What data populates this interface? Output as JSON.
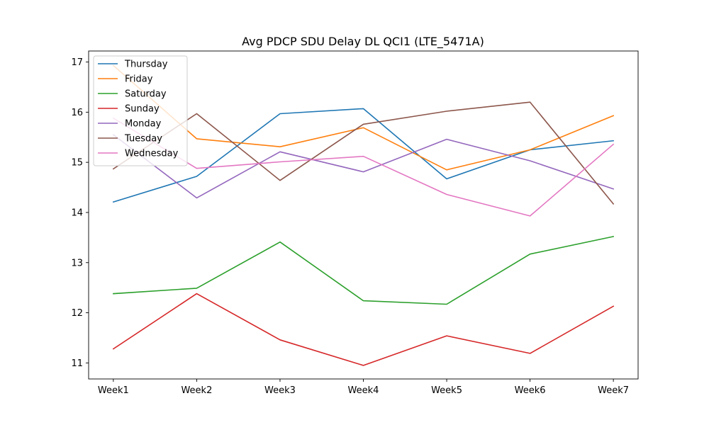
{
  "chart_data": {
    "type": "line",
    "title": "Avg PDCP SDU Delay DL QCI1 (LTE_5471A)",
    "xlabel": "",
    "ylabel": "",
    "categories": [
      "Week1",
      "Week2",
      "Week3",
      "Week4",
      "Week5",
      "Week6",
      "Week7"
    ],
    "ylim": [
      10.68,
      17.22
    ],
    "yticks": [
      11,
      12,
      13,
      14,
      15,
      16,
      17
    ],
    "grid": false,
    "legend_position": "top-left",
    "series": [
      {
        "name": "Thursday",
        "color": "#1f77b4",
        "values": [
          14.21,
          14.72,
          15.97,
          16.07,
          14.67,
          15.25,
          15.43
        ]
      },
      {
        "name": "Friday",
        "color": "#ff7f0e",
        "values": [
          16.93,
          15.47,
          15.31,
          15.69,
          14.85,
          15.25,
          15.93
        ]
      },
      {
        "name": "Saturday",
        "color": "#2ca02c",
        "values": [
          12.38,
          12.49,
          13.41,
          12.24,
          12.17,
          13.17,
          13.52
        ]
      },
      {
        "name": "Sunday",
        "color": "#d62728",
        "values": [
          11.28,
          12.38,
          11.46,
          10.95,
          11.54,
          11.19,
          12.13
        ]
      },
      {
        "name": "Monday",
        "color": "#9467bd",
        "values": [
          15.55,
          14.29,
          15.21,
          14.81,
          15.46,
          15.03,
          14.47
        ]
      },
      {
        "name": "Tuesday",
        "color": "#8c564b",
        "values": [
          14.87,
          15.97,
          14.64,
          15.76,
          16.02,
          16.2,
          14.17
        ]
      },
      {
        "name": "Wednesday",
        "color": "#e377c2",
        "values": [
          15.88,
          14.88,
          15.01,
          15.12,
          14.36,
          13.93,
          15.36
        ]
      }
    ]
  }
}
